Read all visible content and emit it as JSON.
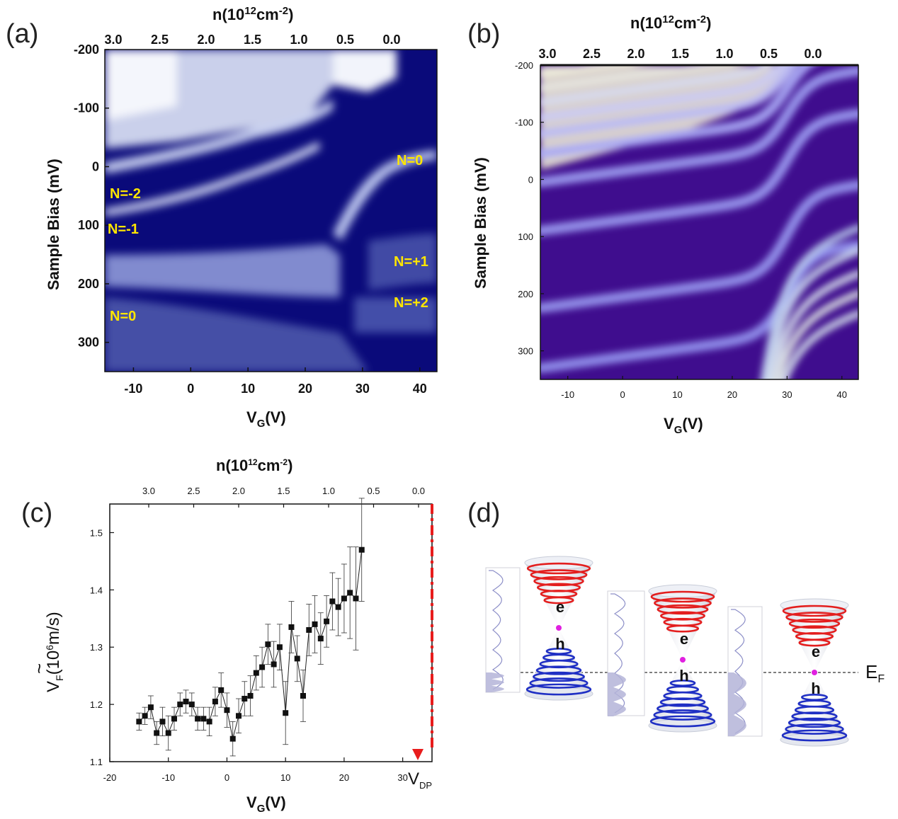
{
  "panels": {
    "a": {
      "label": "(a)",
      "top_axis_title": "n(10¹²cm⁻²)",
      "top_ticks": [
        "3.0",
        "2.5",
        "2.0",
        "1.5",
        "1.0",
        "0.5",
        "0.0"
      ],
      "y_title": "Sample Bias (mV)",
      "y_ticks": [
        "-200",
        "-100",
        "0",
        "100",
        "200",
        "300"
      ],
      "x_title": "V_G(V)",
      "x_ticks": [
        "-10",
        "0",
        "10",
        "20",
        "30",
        "40"
      ],
      "level_labels": [
        "N=-2",
        "N=-1",
        "N=0",
        "N=0",
        "N=+1",
        "N=+2"
      ]
    },
    "b": {
      "label": "(b)",
      "top_axis_title": "n(10¹²cm⁻²)",
      "top_ticks": [
        "3.0",
        "2.5",
        "2.0",
        "1.5",
        "1.0",
        "0.5",
        "0.0"
      ],
      "y_title": "Sample Bias (mV)",
      "y_ticks": [
        "-200",
        "-100",
        "0",
        "100",
        "200",
        "300"
      ],
      "x_title": "V_G(V)",
      "x_ticks": [
        "-10",
        "0",
        "10",
        "20",
        "30",
        "40"
      ]
    },
    "c": {
      "label": "(c)",
      "top_axis_title": "n(10¹²cm⁻²)",
      "top_ticks": [
        "3.0",
        "2.5",
        "2.0",
        "1.5",
        "1.0",
        "0.5",
        "0.0"
      ],
      "y_title": "V_F(10⁶m/s)",
      "y_ticks": [
        "1.1",
        "1.2",
        "1.3",
        "1.4",
        "1.5"
      ],
      "x_title": "V_G(V)",
      "x_ticks": [
        "-20",
        "-10",
        "0",
        "10",
        "20",
        "30"
      ],
      "vdp_label": "V_DP",
      "series_color": "#111111",
      "marker_color": "#e81c1c"
    },
    "d": {
      "label": "(d)",
      "fermi_label": "E_F",
      "electron_label": "e",
      "hole_label": "h",
      "electron_color": "#e31e1e",
      "hole_color": "#1f2fc4",
      "dirac_point_color": "#e020e0"
    }
  },
  "chart_data": [
    {
      "panel": "a",
      "type": "heatmap",
      "xlabel": "VG(V)",
      "ylabel": "Sample Bias (mV)",
      "xlim": [
        -15,
        43
      ],
      "ylim": [
        -200,
        350
      ],
      "top_axis": "n(10^12 cm^-2)",
      "colormap": [
        "#ffffff",
        "#0a0a7a"
      ],
      "annotations": [
        "N=-2",
        "N=-1",
        "N=0",
        "N=0",
        "N=+1",
        "N=+2"
      ]
    },
    {
      "panel": "b",
      "type": "heatmap",
      "xlabel": "VG(V)",
      "ylabel": "Sample Bias (mV)",
      "xlim": [
        -15,
        43
      ],
      "ylim": [
        -200,
        350
      ],
      "top_axis": "n(10^12 cm^-2)",
      "colormap": [
        "#f4f1d8",
        "#9090f0",
        "#3d0a8a"
      ]
    },
    {
      "panel": "c",
      "type": "scatter",
      "xlabel": "VG(V)",
      "ylabel": "VF(10^6 m/s)",
      "xlim": [
        -20,
        35
      ],
      "ylim": [
        1.1,
        1.55
      ],
      "x": [
        -15,
        -14,
        -13,
        -12,
        -11,
        -10,
        -9,
        -8,
        -7,
        -6,
        -5,
        -4,
        -3,
        -2,
        -1,
        0,
        1,
        2,
        3,
        4,
        5,
        6,
        7,
        8,
        9,
        10,
        11,
        12,
        13,
        14,
        15,
        16,
        17,
        18,
        19,
        20,
        21,
        22,
        23
      ],
      "y": [
        1.17,
        1.18,
        1.195,
        1.15,
        1.17,
        1.15,
        1.175,
        1.2,
        1.205,
        1.2,
        1.175,
        1.175,
        1.17,
        1.205,
        1.225,
        1.19,
        1.14,
        1.18,
        1.21,
        1.215,
        1.255,
        1.265,
        1.305,
        1.27,
        1.3,
        1.185,
        1.335,
        1.28,
        1.215,
        1.33,
        1.34,
        1.315,
        1.345,
        1.38,
        1.37,
        1.385,
        1.395,
        1.385,
        1.47
      ],
      "yerr": [
        0.015,
        0.015,
        0.02,
        0.02,
        0.025,
        0.03,
        0.02,
        0.02,
        0.02,
        0.02,
        0.02,
        0.02,
        0.025,
        0.025,
        0.03,
        0.03,
        0.03,
        0.03,
        0.03,
        0.035,
        0.03,
        0.035,
        0.035,
        0.04,
        0.04,
        0.055,
        0.045,
        0.04,
        0.045,
        0.045,
        0.05,
        0.045,
        0.045,
        0.05,
        0.05,
        0.06,
        0.08,
        0.09,
        0.09
      ],
      "vline_x": 35
    }
  ]
}
